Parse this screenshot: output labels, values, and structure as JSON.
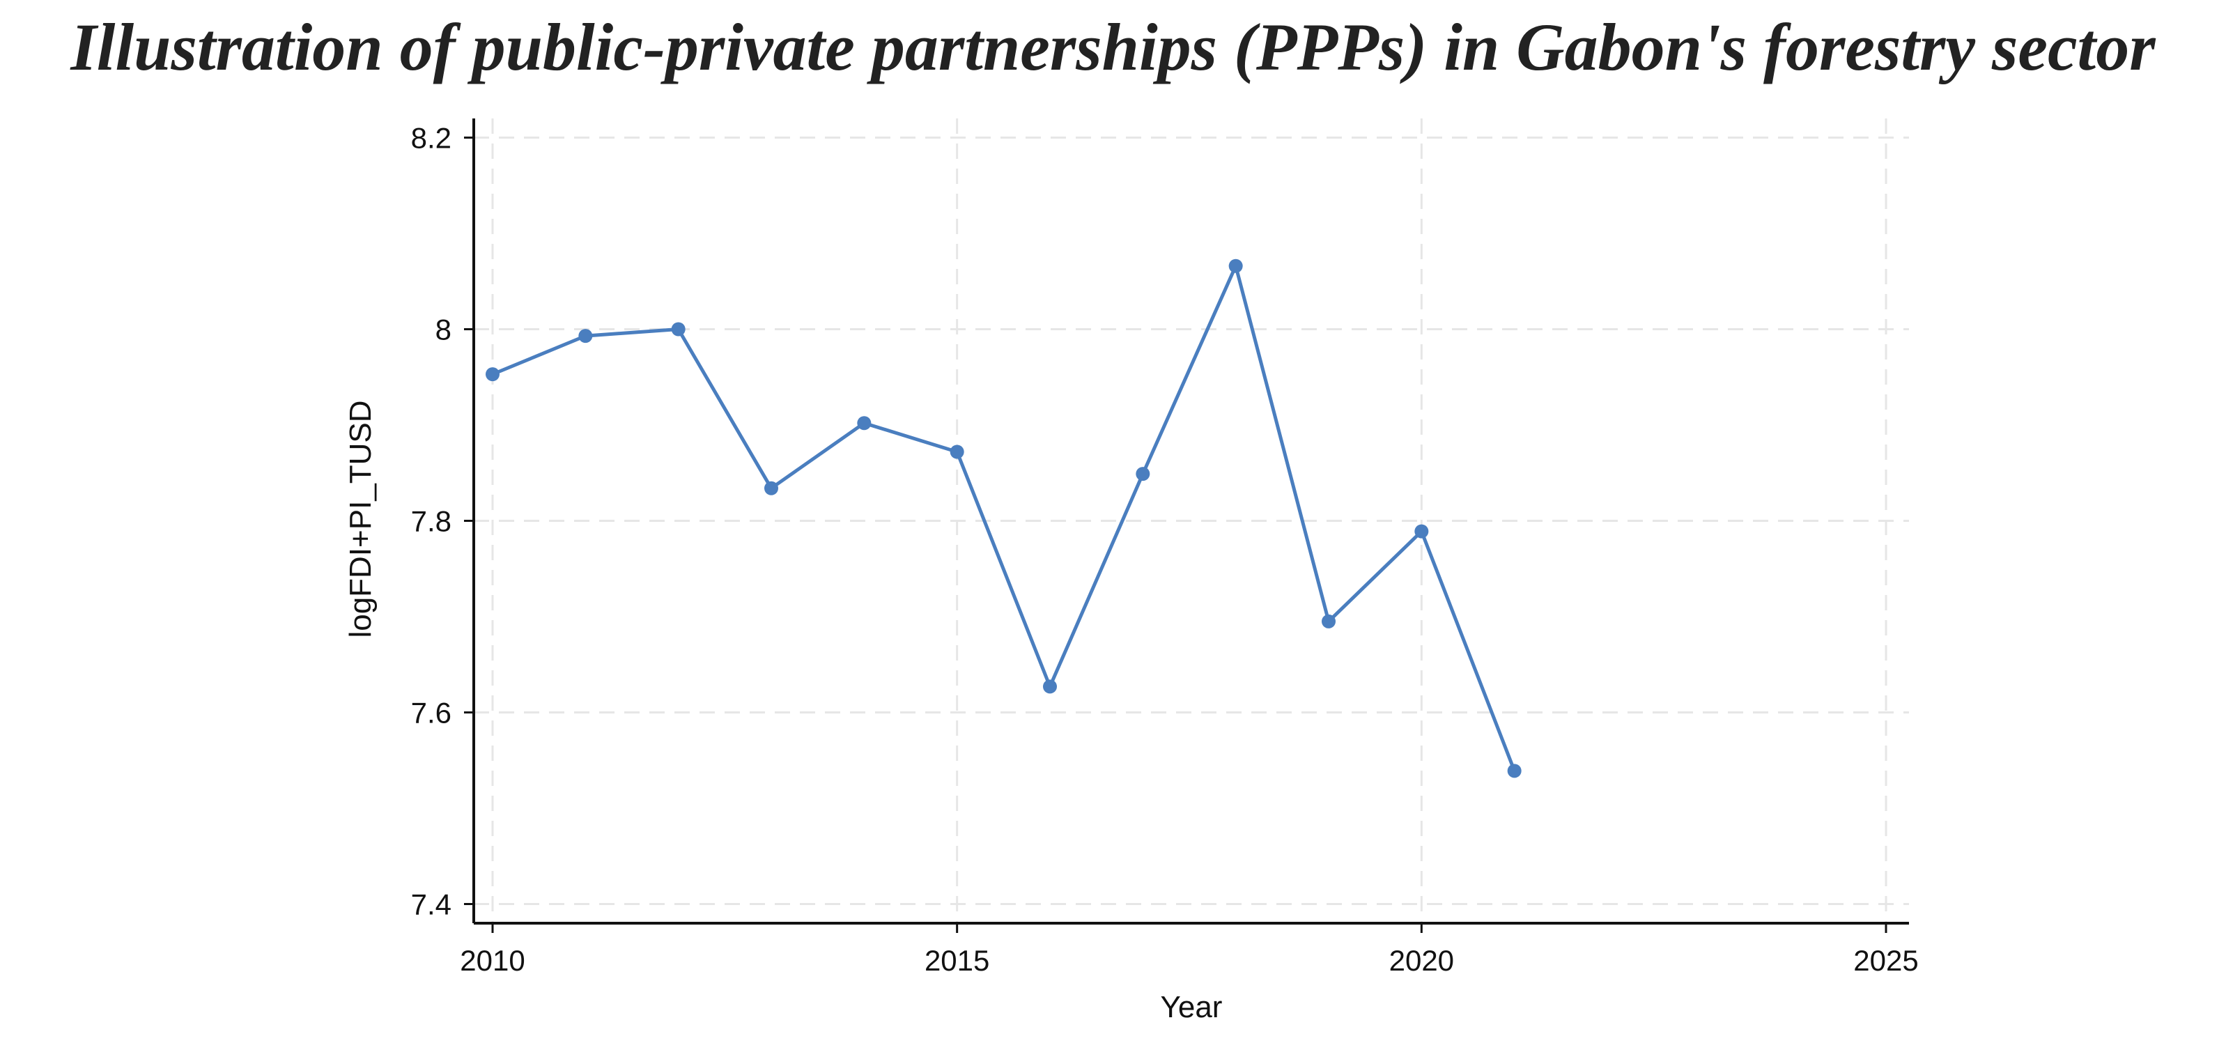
{
  "chart_data": {
    "type": "line",
    "title": "Illustration of public-private partnerships (PPPs) in Gabon's forestry sector",
    "xlabel": "Year",
    "ylabel": "logFDI+PI_TUSD",
    "xlim": [
      2010,
      2025
    ],
    "ylim": [
      7.38,
      8.22
    ],
    "x_ticks": [
      2010,
      2015,
      2020,
      2025
    ],
    "y_ticks": [
      7.4,
      7.6,
      7.8,
      8,
      8.2
    ],
    "grid": true,
    "series": [
      {
        "x": [
          2010,
          2011,
          2012,
          2013,
          2014,
          2015,
          2016,
          2017,
          2018,
          2019,
          2020,
          2021
        ],
        "values": [
          7.953,
          7.993,
          8.0,
          7.834,
          7.902,
          7.872,
          7.627,
          7.849,
          8.066,
          7.695,
          7.789,
          7.539
        ],
        "color": "#4a7ebf"
      }
    ]
  }
}
